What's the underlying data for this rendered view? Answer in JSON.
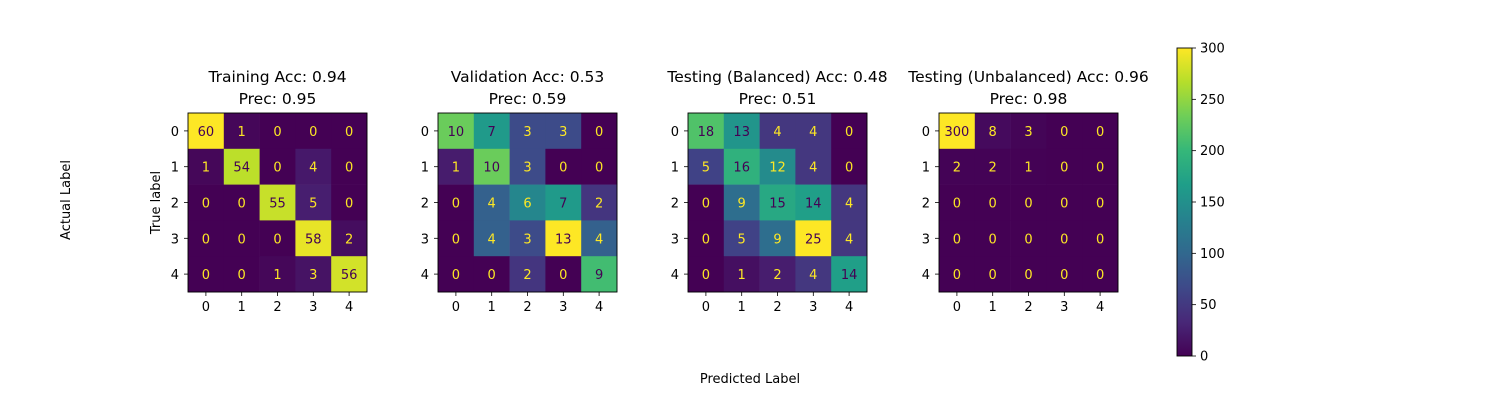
{
  "figure": {
    "supxlabel": "Predicted Label",
    "supylabel": "Actual Label"
  },
  "colorbar": {
    "vmin": 0,
    "vmax": 300,
    "ticks": [
      0,
      50,
      100,
      150,
      200,
      250,
      300
    ],
    "colormap": "viridis"
  },
  "colors": {
    "viridis": [
      "#440154",
      "#482878",
      "#3e4989",
      "#31688e",
      "#26828e",
      "#1f9e89",
      "#35b779",
      "#6ece58",
      "#b5de2b",
      "#fde725"
    ],
    "text_on_dark": "#fde725",
    "text_on_light": "#440154"
  },
  "chart_data": [
    {
      "type": "heatmap",
      "title": "Training Acc: 0.94\nPrec: 0.95",
      "xlabel": "",
      "ylabel": "True label",
      "x_ticks": [
        "0",
        "1",
        "2",
        "3",
        "4"
      ],
      "y_ticks": [
        "0",
        "1",
        "2",
        "3",
        "4"
      ],
      "matrix": [
        [
          60,
          1,
          0,
          0,
          0
        ],
        [
          1,
          54,
          0,
          4,
          0
        ],
        [
          0,
          0,
          55,
          5,
          0
        ],
        [
          0,
          0,
          0,
          58,
          2
        ],
        [
          0,
          0,
          1,
          3,
          56
        ]
      ],
      "vmax": 60
    },
    {
      "type": "heatmap",
      "title": "Validation Acc: 0.53\nPrec: 0.59",
      "xlabel": "",
      "ylabel": "",
      "x_ticks": [
        "0",
        "1",
        "2",
        "3",
        "4"
      ],
      "y_ticks": [
        "0",
        "1",
        "2",
        "3",
        "4"
      ],
      "matrix": [
        [
          10,
          7,
          3,
          3,
          0
        ],
        [
          1,
          10,
          3,
          0,
          0
        ],
        [
          0,
          4,
          6,
          7,
          2
        ],
        [
          0,
          4,
          3,
          13,
          4
        ],
        [
          0,
          0,
          2,
          0,
          9
        ]
      ],
      "vmax": 13
    },
    {
      "type": "heatmap",
      "title": "Testing (Balanced) Acc: 0.48\nPrec: 0.51",
      "xlabel": "",
      "ylabel": "",
      "x_ticks": [
        "0",
        "1",
        "2",
        "3",
        "4"
      ],
      "y_ticks": [
        "0",
        "1",
        "2",
        "3",
        "4"
      ],
      "matrix": [
        [
          18,
          13,
          4,
          4,
          0
        ],
        [
          5,
          16,
          12,
          4,
          0
        ],
        [
          0,
          9,
          15,
          14,
          4
        ],
        [
          0,
          5,
          9,
          25,
          4
        ],
        [
          0,
          1,
          2,
          4,
          14
        ]
      ],
      "vmax": 25
    },
    {
      "type": "heatmap",
      "title": "Testing (Unbalanced) Acc: 0.96\nPrec: 0.98",
      "xlabel": "",
      "ylabel": "",
      "x_ticks": [
        "0",
        "1",
        "2",
        "3",
        "4"
      ],
      "y_ticks": [
        "0",
        "1",
        "2",
        "3",
        "4"
      ],
      "matrix": [
        [
          300,
          8,
          3,
          0,
          0
        ],
        [
          2,
          2,
          1,
          0,
          0
        ],
        [
          0,
          0,
          0,
          0,
          0
        ],
        [
          0,
          0,
          0,
          0,
          0
        ],
        [
          0,
          0,
          0,
          0,
          0
        ]
      ],
      "vmax": 300
    }
  ]
}
